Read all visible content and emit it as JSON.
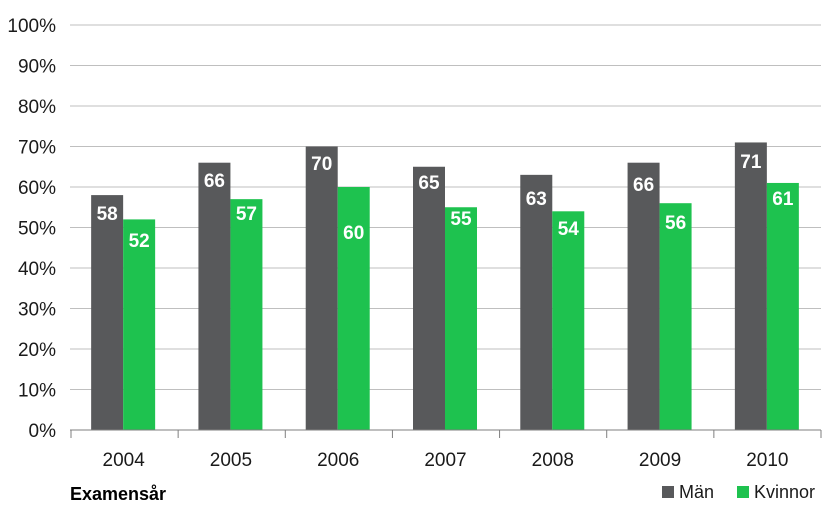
{
  "chart_data": {
    "type": "bar",
    "title": "",
    "xlabel": "Examensår",
    "ylabel": "",
    "categories": [
      "2004",
      "2005",
      "2006",
      "2007",
      "2008",
      "2009",
      "2010"
    ],
    "series": [
      {
        "name": "Män",
        "values": [
          58,
          66,
          70,
          65,
          63,
          66,
          71
        ],
        "color": "#58595b"
      },
      {
        "name": "Kvinnor",
        "values": [
          52,
          57,
          60,
          55,
          54,
          56,
          61
        ],
        "color": "#1ec24f"
      }
    ],
    "ylim": [
      0,
      100
    ],
    "yticks": [
      "0%",
      "10%",
      "20%",
      "30%",
      "40%",
      "50%",
      "60%",
      "70%",
      "80%",
      "90%",
      "100%"
    ],
    "grid": true,
    "legend": "bottom-right"
  }
}
